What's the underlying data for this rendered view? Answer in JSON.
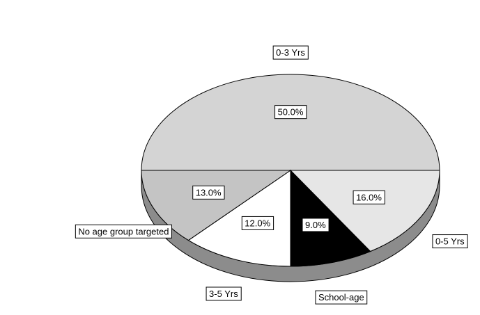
{
  "chart_data": {
    "type": "pie",
    "categories": [
      "0-3 Yrs",
      "0-5 Yrs",
      "School-age",
      "3-5 Yrs",
      "No age group targeted"
    ],
    "values": [
      50,
      16,
      9,
      12,
      13
    ],
    "value_labels": [
      "50.0%",
      "16.0%",
      "9.0%",
      "12.0%",
      "13.0%"
    ],
    "colors": [
      "#d4d4d4",
      "#e6e6e6",
      "#000000",
      "#ffffff",
      "#c4c4c4"
    ]
  }
}
